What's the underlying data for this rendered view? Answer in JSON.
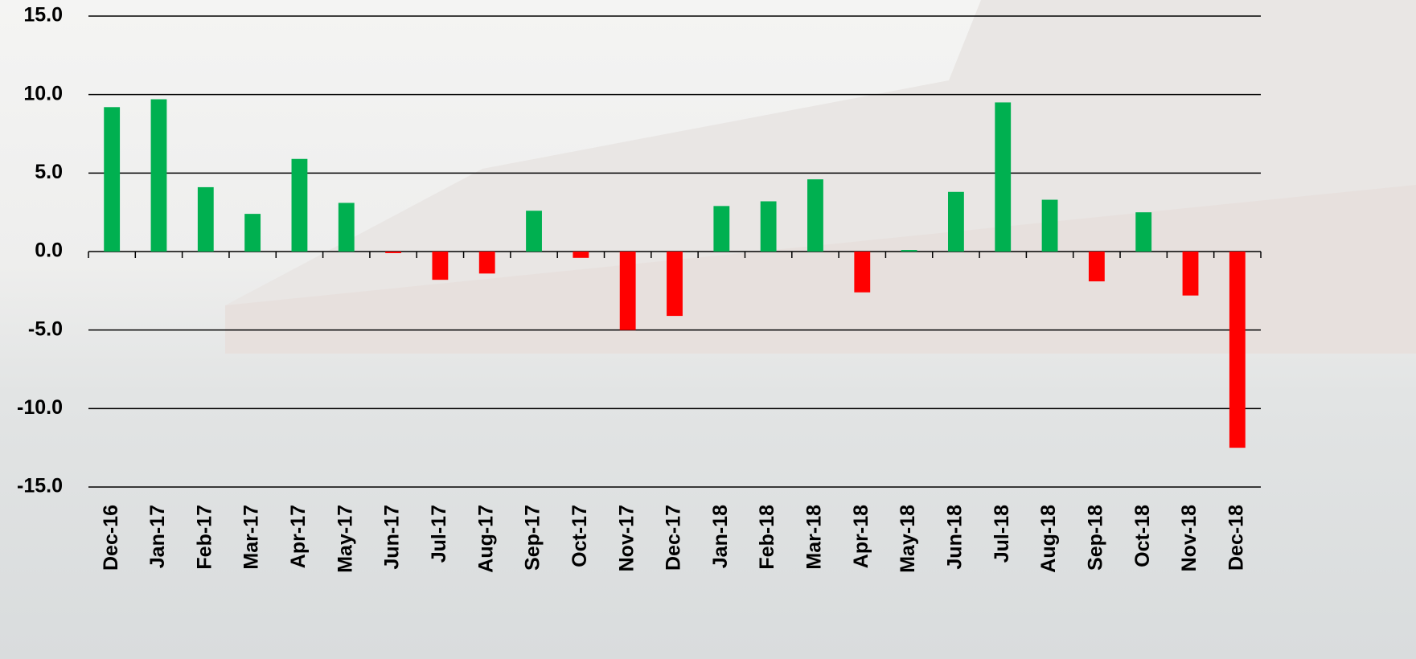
{
  "chart_data": {
    "type": "bar",
    "categories": [
      "Dec-16",
      "Jan-17",
      "Feb-17",
      "Mar-17",
      "Apr-17",
      "May-17",
      "Jun-17",
      "Jul-17",
      "Aug-17",
      "Sep-17",
      "Oct-17",
      "Nov-17",
      "Dec-17",
      "Jan-18",
      "Feb-18",
      "Mar-18",
      "Apr-18",
      "May-18",
      "Jun-18",
      "Jul-18",
      "Aug-18",
      "Sep-18",
      "Oct-18",
      "Nov-18",
      "Dec-18"
    ],
    "values": [
      9.2,
      9.7,
      4.1,
      2.4,
      5.9,
      3.1,
      -0.1,
      -1.8,
      -1.4,
      2.6,
      -0.4,
      -5.0,
      -4.1,
      2.9,
      3.2,
      4.6,
      -2.6,
      0.1,
      3.8,
      9.5,
      3.3,
      -1.9,
      2.5,
      -2.8,
      -12.5
    ],
    "positive_color": "#00b050",
    "negative_color": "#ff0000",
    "ylim": [
      -15,
      15
    ],
    "yticks": [
      {
        "value": -15,
        "label": "-15.0"
      },
      {
        "value": -10,
        "label": "-10.0"
      },
      {
        "value": -5,
        "label": "-5.0"
      },
      {
        "value": 0,
        "label": "0.0"
      },
      {
        "value": 5,
        "label": "5.0"
      },
      {
        "value": 10,
        "label": "10.0"
      },
      {
        "value": 15,
        "label": "15.0"
      }
    ],
    "grid": true
  }
}
